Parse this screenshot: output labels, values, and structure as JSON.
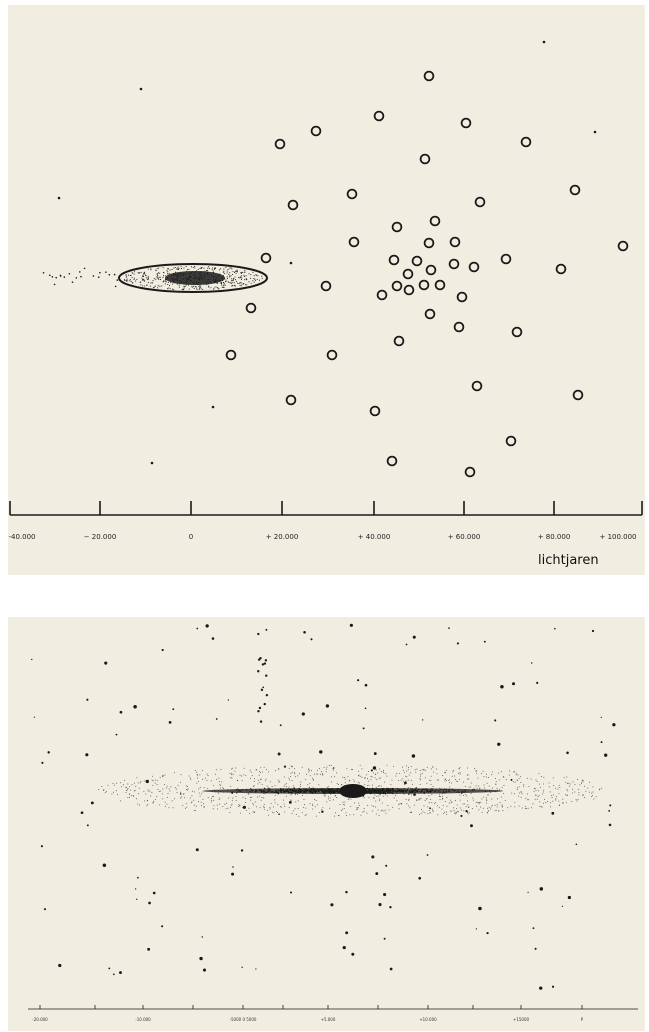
{
  "top_diagram": {
    "axis_ticks": [
      "-40.000",
      "− 20.000",
      "0",
      "+ 20.000",
      "+ 40.000",
      "+ 60.000",
      "+ 80.000",
      "+ 100.000"
    ],
    "unit": "lichtjaren"
  },
  "bottom_diagram": {
    "axis_ticks": [
      "-20.000",
      "-10.000",
      "-5000 0 5000",
      "+5.000",
      "+10.000",
      "+15000",
      "P"
    ]
  },
  "colors": {
    "paper": "#f1eee1",
    "ink": "#1a1a1a"
  }
}
